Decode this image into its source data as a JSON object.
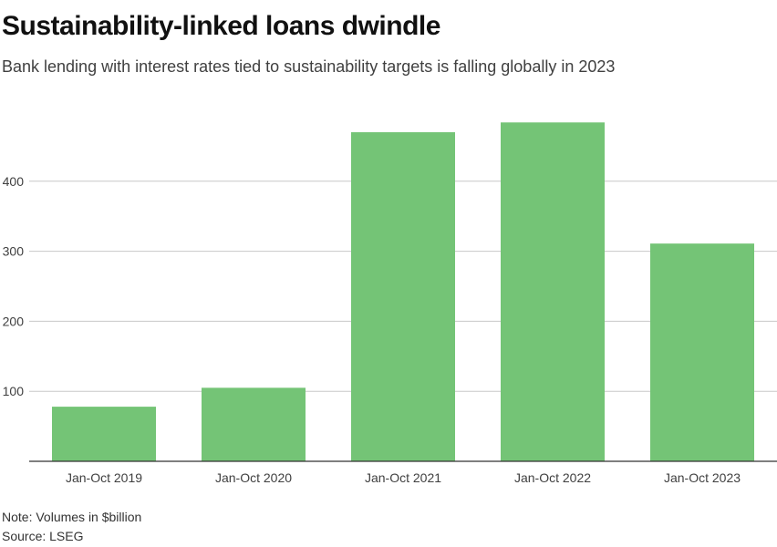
{
  "header": {
    "title": "Sustainability-linked loans dwindle",
    "subtitle": "Bank lending with interest rates tied to sustainability targets is falling globally in 2023"
  },
  "footer": {
    "note": "Note: Volumes in $billion",
    "source": "Source: LSEG"
  },
  "colors": {
    "bar": "#74c476",
    "grid": "#c8c8c8",
    "axis": "#333333",
    "tick_text": "#404040"
  },
  "chart_data": {
    "type": "bar",
    "title": "Sustainability-linked loans dwindle",
    "subtitle": "Bank lending with interest rates tied to sustainability targets is falling globally in 2023",
    "categories": [
      "Jan-Oct 2019",
      "Jan-Oct 2020",
      "Jan-Oct 2021",
      "Jan-Oct 2022",
      "Jan-Oct 2023"
    ],
    "values": [
      78,
      105,
      470,
      484,
      311
    ],
    "yticks": [
      100,
      200,
      300,
      400
    ],
    "ylim": [
      0,
      500
    ],
    "grid": true,
    "xlabel": "",
    "ylabel": ""
  }
}
